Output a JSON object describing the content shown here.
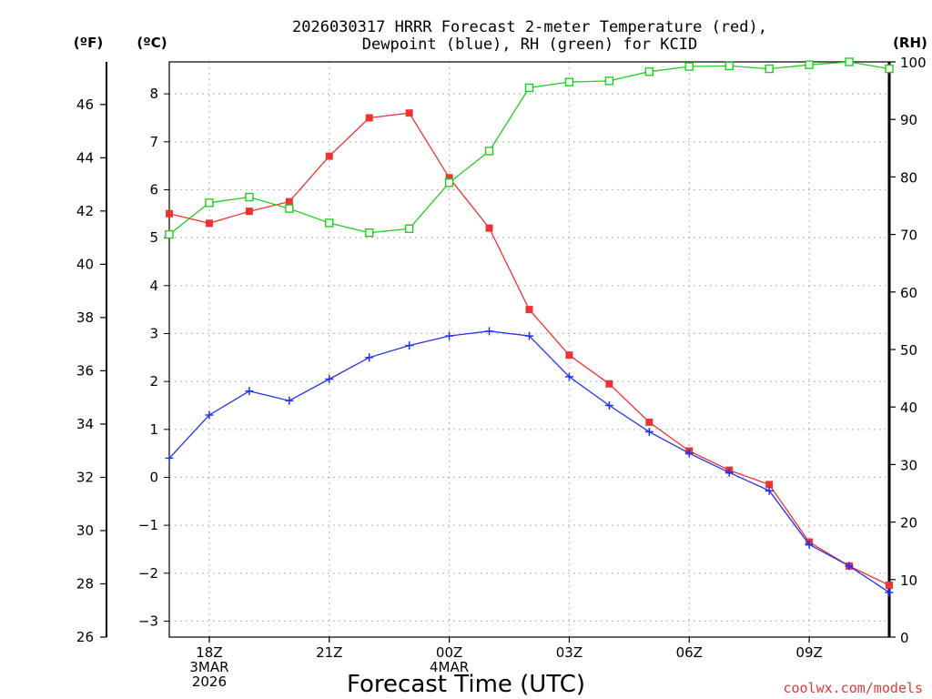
{
  "chart_data": {
    "type": "line",
    "title_line1": "2026030317 HRRR Forecast 2-meter Temperature (red),",
    "title_line2": "Dewpoint (blue), RH (green) for KCID",
    "xlabel": "Forecast Time (UTC)",
    "credit": "coolwx.com/models",
    "units": {
      "fahrenheit": "(ºF)",
      "celsius": "(ºC)",
      "rh": "(RH)"
    },
    "x_hours": [
      17,
      18,
      19,
      20,
      21,
      22,
      23,
      24,
      25,
      26,
      27,
      28,
      29,
      30,
      31,
      32,
      33,
      34,
      35
    ],
    "x_ticks": [
      {
        "hour": 18,
        "lines": [
          "18Z",
          "3MAR",
          "2026"
        ]
      },
      {
        "hour": 21,
        "lines": [
          "21Z"
        ]
      },
      {
        "hour": 24,
        "lines": [
          "00Z",
          "4MAR"
        ]
      },
      {
        "hour": 27,
        "lines": [
          "03Z"
        ]
      },
      {
        "hour": 30,
        "lines": [
          "06Z"
        ]
      },
      {
        "hour": 33,
        "lines": [
          "09Z"
        ]
      }
    ],
    "xlim": [
      17,
      35
    ],
    "ylim_celsius": [
      -3.333,
      8.667
    ],
    "ylim_fahrenheit": [
      26,
      47.6
    ],
    "ylim_rh": [
      0,
      100
    ],
    "celsius_ticks": [
      -3,
      -2,
      -1,
      0,
      1,
      2,
      3,
      4,
      5,
      6,
      7,
      8
    ],
    "fahrenheit_ticks": [
      26,
      28,
      30,
      32,
      34,
      36,
      38,
      40,
      42,
      44,
      46
    ],
    "rh_ticks": [
      0,
      10,
      20,
      30,
      40,
      50,
      60,
      70,
      80,
      90,
      100
    ],
    "grid": true,
    "series": [
      {
        "name": "Temperature",
        "color": "#ee3333",
        "marker": "filled-square",
        "axis": "celsius",
        "values": [
          5.5,
          5.3,
          5.55,
          5.75,
          6.7,
          7.5,
          7.6,
          6.25,
          5.2,
          3.5,
          2.55,
          1.95,
          1.15,
          0.55,
          0.15,
          -0.15,
          -1.35,
          -1.85,
          -2.25
        ]
      },
      {
        "name": "Dewpoint",
        "color": "#2233ee",
        "marker": "plus",
        "axis": "celsius",
        "values": [
          0.4,
          1.3,
          1.8,
          1.6,
          2.05,
          2.5,
          2.75,
          2.95,
          3.05,
          2.95,
          2.1,
          1.5,
          0.95,
          0.5,
          0.1,
          -0.28,
          -1.4,
          -1.85,
          -2.4
        ]
      },
      {
        "name": "RH",
        "color": "#22cc22",
        "marker": "open-square",
        "axis": "rh",
        "values": [
          70,
          75.5,
          76.5,
          74.5,
          72,
          70.3,
          71,
          79,
          84.5,
          95.5,
          96.5,
          96.7,
          98.3,
          99.2,
          99.3,
          98.8,
          99.5,
          100,
          98.8
        ]
      }
    ]
  }
}
